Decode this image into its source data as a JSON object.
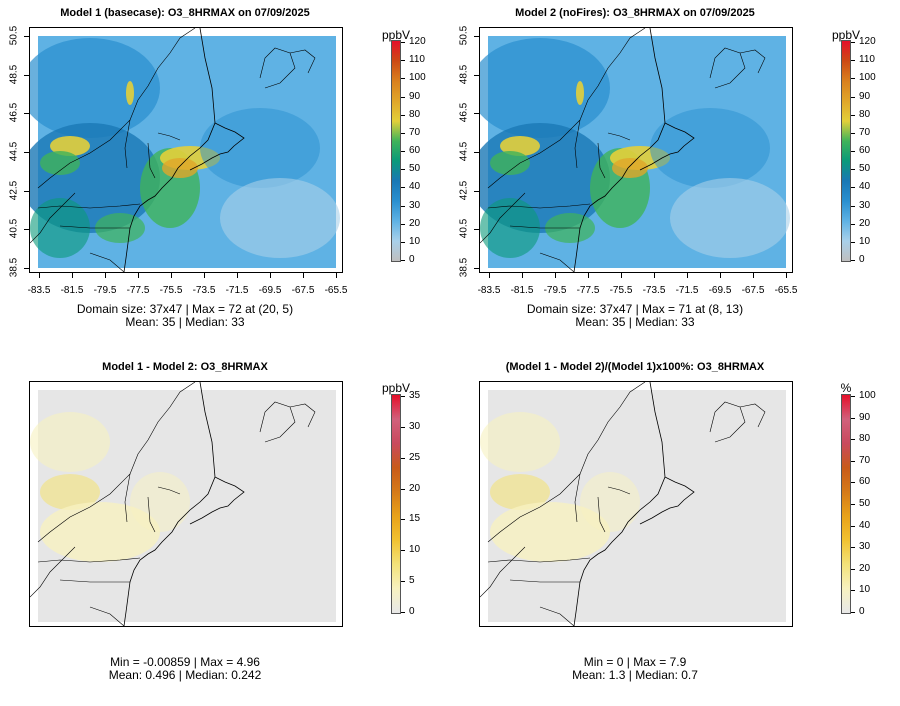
{
  "panels": [
    {
      "id": "p1",
      "title": "Model 1 (basecase): O3_8HRMAX on 07/09/2025",
      "unit": "ppbV",
      "stats_line1": "Domain size: 37x47 | Max = 72 at (20, 5)",
      "stats_line2": "Mean: 35 |  Median: 33",
      "colorbar_labels": [
        "120",
        "110",
        "100",
        "90",
        "80",
        "70",
        "60",
        "50",
        "40",
        "30",
        "20",
        "10",
        "0"
      ]
    },
    {
      "id": "p2",
      "title": "Model 2 (noFires): O3_8HRMAX on 07/09/2025",
      "unit": "ppbV",
      "stats_line1": "Domain size: 37x47 | Max = 71 at (8, 13)",
      "stats_line2": "Mean: 35 |  Median: 33",
      "colorbar_labels": [
        "120",
        "110",
        "100",
        "90",
        "80",
        "70",
        "60",
        "50",
        "40",
        "30",
        "20",
        "10",
        "0"
      ]
    },
    {
      "id": "p3",
      "title": "Model 1 - Model 2: O3_8HRMAX",
      "unit": "ppbV",
      "stats_line1": "Min = -0.00859 | Max = 4.96",
      "stats_line2": "Mean: 0.496 |  Median: 0.242",
      "colorbar_labels": [
        "35",
        "30",
        "25",
        "20",
        "15",
        "10",
        "5",
        "0"
      ]
    },
    {
      "id": "p4",
      "title": "(Model 1 - Model 2)/(Model 1)x100%: O3_8HRMAX",
      "unit": "%",
      "stats_line1": "Min = 0 | Max = 7.9",
      "stats_line2": "Mean: 1.3 |  Median: 0.7",
      "colorbar_labels": [
        "100",
        "90",
        "80",
        "70",
        "60",
        "50",
        "40",
        "30",
        "20",
        "10",
        "0"
      ]
    }
  ],
  "x_ticks": [
    "-83.5",
    "-81.5",
    "-79.5",
    "-77.5",
    "-75.5",
    "-73.5",
    "-71.5",
    "-69.5",
    "-67.5",
    "-65.5"
  ],
  "y_ticks": [
    "50.5",
    "48.5",
    "46.5",
    "44.5",
    "42.5",
    "40.5",
    "38.5"
  ],
  "colors": {
    "ozone_scale": [
      "#bfbfbf",
      "#a8d0ea",
      "#5fb2e4",
      "#2a8fcf",
      "#1a78b5",
      "#0a9a7a",
      "#3fb35a",
      "#e3cf3a",
      "#e0a62a",
      "#d9801e",
      "#cc4a14",
      "#e5102a"
    ],
    "diff_scale": [
      "#e8e8e8",
      "#f7f1c0",
      "#f3e27a",
      "#f1c232",
      "#e8a21a",
      "#d57a1a",
      "#c85a1a",
      "#c94a5e",
      "#d1607c",
      "#e5102a"
    ],
    "background": "#e6e6e6"
  }
}
